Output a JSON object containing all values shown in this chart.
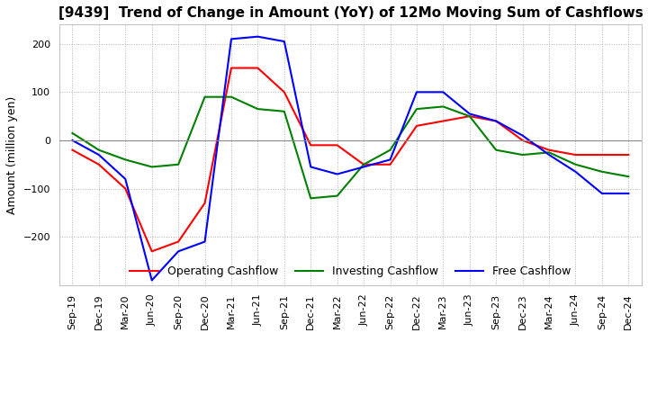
{
  "title": "[9439]  Trend of Change in Amount (YoY) of 12Mo Moving Sum of Cashflows",
  "ylabel": "Amount (million yen)",
  "xlabels": [
    "Sep-19",
    "Dec-19",
    "Mar-20",
    "Jun-20",
    "Sep-20",
    "Dec-20",
    "Mar-21",
    "Jun-21",
    "Sep-21",
    "Dec-21",
    "Mar-22",
    "Jun-22",
    "Sep-22",
    "Dec-22",
    "Mar-23",
    "Jun-23",
    "Sep-23",
    "Dec-23",
    "Mar-24",
    "Jun-24",
    "Sep-24",
    "Dec-24"
  ],
  "operating": [
    -20,
    -50,
    -100,
    -230,
    -210,
    -130,
    150,
    150,
    100,
    -10,
    -10,
    -50,
    -50,
    30,
    40,
    50,
    40,
    0,
    -20,
    -30,
    -30,
    -30
  ],
  "investing": [
    15,
    -20,
    -40,
    -55,
    -50,
    90,
    90,
    65,
    60,
    -120,
    -115,
    -50,
    -20,
    65,
    70,
    50,
    -20,
    -30,
    -25,
    -50,
    -65,
    -75
  ],
  "free": [
    0,
    -30,
    -80,
    -290,
    -230,
    -210,
    210,
    215,
    205,
    -55,
    -70,
    -55,
    -40,
    100,
    100,
    55,
    40,
    10,
    -30,
    -65,
    -110,
    -110
  ],
  "ylim": [
    -300,
    240
  ],
  "yticks": [
    -200,
    -100,
    0,
    100,
    200
  ],
  "operating_color": "#ff0000",
  "investing_color": "#008000",
  "free_color": "#0000ff",
  "grid_color": "#b0b0b0",
  "background_color": "#ffffff",
  "title_fontsize": 11,
  "axis_fontsize": 8,
  "ylabel_fontsize": 9
}
